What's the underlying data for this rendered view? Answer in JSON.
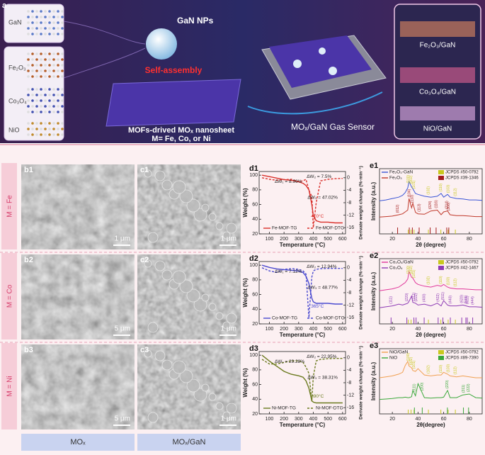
{
  "panel_a": {
    "label": "a",
    "crystals": [
      "GaN",
      "Fe₂O₃",
      "Co₃O₄",
      "NiO"
    ],
    "nanoparticles": "GaN NPs",
    "process": "Self-assembly",
    "nanosheet": "MOFs-drived MOₓ nanosheet",
    "metals": "M= Fe, Co, or Ni",
    "sensor": "MOₓ/GaN Gas Sensor",
    "composites": [
      "Fe₂O₃/GaN",
      "Co₃O₄/GaN",
      "NiO/GaN"
    ]
  },
  "rows": [
    {
      "label": "M = Fe",
      "b_label": "b1",
      "b_scale": "1 μm",
      "c_label": "c1",
      "c_scale": "1 μm"
    },
    {
      "label": "M = Co",
      "b_label": "b2",
      "b_scale": "5 μm",
      "c_label": "c2",
      "c_scale": "1 μm"
    },
    {
      "label": "M = Ni",
      "b_label": "b3",
      "b_scale": "5 μm",
      "c_label": "c3",
      "c_scale": "1 μm"
    }
  ],
  "columns": [
    "MOₓ",
    "MOₓ/GaN"
  ],
  "chart_data": [
    {
      "type": "tg",
      "label": "d1",
      "x_label": "Temperature (°C)",
      "y_label": "Weight (%)",
      "y2_label": "Derivate weight change (%·min⁻¹)",
      "x": [
        50,
        100,
        150,
        200,
        250,
        300,
        330,
        350,
        370,
        390,
        400,
        420,
        450,
        500,
        550,
        600
      ],
      "xlim": [
        30,
        620
      ],
      "xticks": [
        100,
        200,
        300,
        400,
        500,
        600
      ],
      "ylim": [
        20,
        105
      ],
      "yticks": [
        20,
        40,
        60,
        80,
        100
      ],
      "y2lim": [
        -18,
        2
      ],
      "y2ticks": [
        0,
        -4,
        -8,
        -12,
        -16
      ],
      "series": [
        {
          "name": "Fe-MOF-TG",
          "color": "#d9302b",
          "values": [
            100,
            98,
            96,
            94,
            93,
            91,
            89,
            86,
            80,
            60,
            45,
            38,
            36,
            36,
            35,
            35
          ]
        },
        {
          "name": "Fe-MOF-DTG",
          "color": "#d9302b",
          "dash": true,
          "axis": "y2",
          "values": [
            0,
            -0.5,
            -0.8,
            -0.6,
            -0.5,
            -1.2,
            -1,
            -0.5,
            -4,
            -6,
            -16,
            -8,
            -1,
            -0.5,
            -0.3,
            -0.2
          ]
        }
      ],
      "annotations": [
        "ΔW₁ = 8.96%",
        "ΔW₂ = 7.5%",
        "ΔW₃ = 47.02%",
        "410°C"
      ]
    },
    {
      "type": "xrd",
      "label": "e1",
      "x_label": "2θ (degree)",
      "y_label": "Intensity (a.u.)",
      "x": [
        10,
        15,
        20,
        25,
        28,
        30,
        32,
        33,
        35,
        36,
        38,
        40,
        45,
        50,
        55,
        58,
        60,
        63,
        65,
        70,
        75,
        80,
        85,
        90
      ],
      "xlim": [
        10,
        90
      ],
      "xticks": [
        20,
        40,
        60,
        80
      ],
      "series": [
        {
          "name": "Fe₂O₃-GaN",
          "color": "#3a55d6",
          "values": [
            50,
            52,
            55,
            58,
            62,
            68,
            78,
            92,
            80,
            76,
            66,
            64,
            60,
            58,
            60,
            66,
            58,
            64,
            58,
            55,
            54,
            52,
            52,
            51
          ]
        },
        {
          "name": "Fe₂O₃",
          "color": "#c0392b",
          "values": [
            15,
            16,
            17,
            20,
            22,
            26,
            30,
            55,
            35,
            45,
            25,
            22,
            21,
            28,
            30,
            20,
            26,
            28,
            20,
            18,
            18,
            17,
            16,
            16
          ]
        }
      ],
      "references": [
        {
          "name": "JCPDS #50-0792",
          "color": "#c8c81e",
          "peaks": [
            {
              "x": 32.4,
              "label": "(100)"
            },
            {
              "x": 34.6,
              "label": "(002)"
            },
            {
              "x": 36.9,
              "label": "(101)"
            },
            {
              "x": 48.1,
              "label": "(102)"
            },
            {
              "x": 57.8,
              "label": "(110)"
            },
            {
              "x": 63.5,
              "label": "(103)"
            },
            {
              "x": 69.1,
              "label": "(112)"
            }
          ]
        },
        {
          "name": "JCPDS #39-1346",
          "color": "#a31c1c",
          "peaks": [
            {
              "x": 24.1,
              "label": "(012)"
            },
            {
              "x": 33.2,
              "label": "(104)"
            },
            {
              "x": 35.6,
              "label": "(110)"
            },
            {
              "x": 40.9,
              "label": "(113)"
            },
            {
              "x": 49.5,
              "label": "(024)"
            },
            {
              "x": 54.1,
              "label": "(116)"
            },
            {
              "x": 62.4,
              "label": "(214)"
            },
            {
              "x": 64.0,
              "label": "(300)"
            }
          ]
        }
      ]
    },
    {
      "type": "tg",
      "label": "d2",
      "x_label": "Temperature (°C)",
      "y_label": "Weight (%)",
      "y2_label": "Derivate weight change (%·min⁻¹)",
      "x": [
        50,
        100,
        150,
        200,
        250,
        300,
        330,
        350,
        370,
        390,
        400,
        420,
        450,
        500,
        550,
        600
      ],
      "xlim": [
        30,
        620
      ],
      "xticks": [
        100,
        200,
        300,
        400,
        500,
        600
      ],
      "ylim": [
        20,
        105
      ],
      "yticks": [
        20,
        40,
        60,
        80,
        100
      ],
      "y2lim": [
        -18,
        2
      ],
      "y2ticks": [
        0,
        -4,
        -8,
        -12,
        -16
      ],
      "series": [
        {
          "name": "Co-MOF-TG",
          "color": "#4a4ad0",
          "values": [
            100,
            97,
            95,
            94,
            93,
            92,
            90,
            85,
            75,
            55,
            50,
            48,
            48,
            48,
            47,
            47
          ]
        },
        {
          "name": "Co-MOF-DTG",
          "color": "#4a4ad0",
          "dash": true,
          "axis": "y2",
          "values": [
            0,
            -1,
            -1.5,
            -0.5,
            -0.3,
            -0.5,
            -1,
            -2,
            -16,
            -3,
            -1,
            -0.5,
            -0.3,
            -0.2,
            -0.2,
            -0.2
          ]
        }
      ],
      "annotations": [
        "ΔW₁ = 7.12%",
        "ΔW₂ = 12.94%",
        "ΔW₃ = 48.77%",
        "365°C"
      ]
    },
    {
      "type": "xrd",
      "label": "e2",
      "x_label": "2θ (degree)",
      "y_label": "Intensity (a.u.)",
      "x": [
        10,
        15,
        20,
        25,
        28,
        30,
        32,
        33,
        35,
        36,
        38,
        40,
        45,
        50,
        55,
        58,
        60,
        63,
        65,
        70,
        75,
        80,
        85,
        90
      ],
      "xlim": [
        10,
        90
      ],
      "xticks": [
        20,
        40,
        60,
        80
      ],
      "series": [
        {
          "name": "Co₃O₄/GaN",
          "color": "#e0379a",
          "values": [
            52,
            54,
            56,
            60,
            66,
            70,
            78,
            95,
            82,
            80,
            70,
            66,
            62,
            60,
            64,
            62,
            66,
            60,
            58,
            56,
            56,
            55,
            54,
            54
          ]
        },
        {
          "name": "Co₃O₄",
          "color": "#8e3bb5",
          "values": [
            14,
            16,
            18,
            22,
            20,
            22,
            24,
            28,
            40,
            26,
            24,
            20,
            22,
            18,
            24,
            18,
            30,
            20,
            18,
            18,
            20,
            16,
            16,
            15
          ]
        }
      ],
      "references": [
        {
          "name": "JCPDS #50-0792",
          "color": "#c8c81e",
          "peaks": [
            {
              "x": 32.4,
              "label": "(100)"
            },
            {
              "x": 34.6,
              "label": "(002)"
            },
            {
              "x": 36.9,
              "label": "(101)"
            },
            {
              "x": 48.1,
              "label": "(102)"
            },
            {
              "x": 57.8,
              "label": "(110)"
            },
            {
              "x": 63.5,
              "label": "(103)"
            },
            {
              "x": 69.1,
              "label": "(112)"
            }
          ]
        },
        {
          "name": "JCPDS #42-1467",
          "color": "#8e3bb5",
          "peaks": [
            {
              "x": 19.0,
              "label": "(111)"
            },
            {
              "x": 31.3,
              "label": "(220)"
            },
            {
              "x": 36.8,
              "label": "(311)"
            },
            {
              "x": 38.5,
              "label": "(222)"
            },
            {
              "x": 44.8,
              "label": "(400)"
            },
            {
              "x": 55.7,
              "label": "(422)"
            },
            {
              "x": 59.4,
              "label": "(511)"
            },
            {
              "x": 65.2,
              "label": "(440)"
            },
            {
              "x": 74.1,
              "label": "(620)"
            },
            {
              "x": 77.3,
              "label": "(533)"
            },
            {
              "x": 78.4,
              "label": "(622)"
            },
            {
              "x": 82.6,
              "label": "(444)"
            }
          ]
        }
      ]
    },
    {
      "type": "tg",
      "label": "d3",
      "x_label": "Temperature (°C)",
      "y_label": "Weight (%)",
      "y2_label": "Derivate weight change (%·min⁻¹)",
      "x": [
        50,
        100,
        150,
        200,
        250,
        300,
        330,
        350,
        370,
        390,
        400,
        420,
        450,
        500,
        550,
        600
      ],
      "xlim": [
        30,
        620
      ],
      "xticks": [
        100,
        200,
        300,
        400,
        500,
        600
      ],
      "ylim": [
        20,
        105
      ],
      "yticks": [
        20,
        40,
        60,
        80,
        100
      ],
      "y2lim": [
        -18,
        2
      ],
      "y2ticks": [
        0,
        -4,
        -8,
        -12,
        -16
      ],
      "series": [
        {
          "name": "Ni-MOF-TG",
          "color": "#6b7a1e",
          "values": [
            100,
            92,
            85,
            78,
            74,
            72,
            70,
            65,
            55,
            38,
            36,
            35,
            35,
            35,
            35,
            35
          ]
        },
        {
          "name": "Ni-MOF-DTG",
          "color": "#6b7a1e",
          "dash": true,
          "axis": "y2",
          "values": [
            -0.5,
            -2,
            -2,
            -1.5,
            -1,
            -1,
            -1.5,
            -3,
            -5,
            -14,
            -6,
            -1,
            -0.5,
            -0.3,
            -0.2,
            -0.2
          ]
        }
      ],
      "annotations": [
        "ΔW₁ = 29.28%",
        "ΔW₂ = 22.95%",
        "ΔW₃ = 38.31%",
        "390°C"
      ]
    },
    {
      "type": "xrd",
      "label": "e3",
      "x_label": "2θ(degree)",
      "y_label": "Intensity (a.u.)",
      "x": [
        10,
        15,
        20,
        25,
        28,
        30,
        32,
        33,
        35,
        36,
        38,
        40,
        45,
        50,
        55,
        58,
        60,
        63,
        65,
        70,
        75,
        80,
        85,
        90
      ],
      "xlim": [
        10,
        90
      ],
      "xticks": [
        20,
        40,
        60,
        80
      ],
      "series": [
        {
          "name": "NiO/GaN",
          "color": "#f0a050",
          "values": [
            58,
            60,
            62,
            66,
            70,
            85,
            94,
            84,
            80,
            74,
            72,
            78,
            64,
            62,
            64,
            64,
            70,
            66,
            62,
            60,
            62,
            60,
            58,
            58
          ]
        },
        {
          "name": "NiO",
          "color": "#3aa83a",
          "values": [
            10,
            11,
            12,
            14,
            14,
            15,
            14,
            14,
            16,
            30,
            18,
            45,
            14,
            13,
            14,
            14,
            15,
            30,
            14,
            14,
            20,
            22,
            14,
            13
          ]
        }
      ],
      "references": [
        {
          "name": "JCPDS #50-0792",
          "color": "#c8c81e",
          "peaks": [
            {
              "x": 32.4,
              "label": "(100)"
            },
            {
              "x": 34.6,
              "label": "(002)"
            },
            {
              "x": 36.9,
              "label": "(101)"
            },
            {
              "x": 48.1,
              "label": "(102)"
            },
            {
              "x": 57.8,
              "label": "(110)"
            },
            {
              "x": 63.5,
              "label": "(103)"
            },
            {
              "x": 69.1,
              "label": "(112)"
            }
          ]
        },
        {
          "name": "JCPDS #89-7390",
          "color": "#3aa83a",
          "peaks": [
            {
              "x": 37.2,
              "label": "(111)"
            },
            {
              "x": 43.3,
              "label": "(200)"
            },
            {
              "x": 62.9,
              "label": "(220)"
            },
            {
              "x": 75.4,
              "label": "(311)"
            },
            {
              "x": 79.4,
              "label": "(222)"
            }
          ]
        }
      ]
    }
  ]
}
